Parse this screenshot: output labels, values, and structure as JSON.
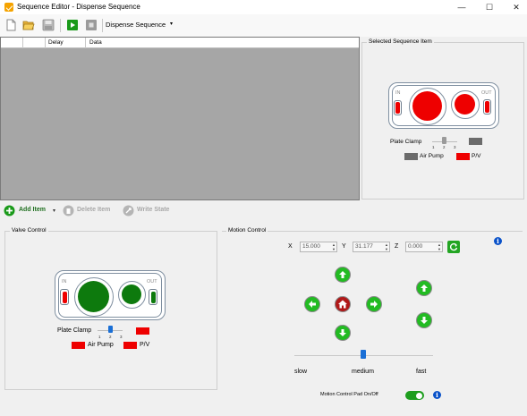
{
  "window": {
    "title": "Sequence Editor - Dispense Sequence",
    "minimize_glyph": "—",
    "maximize_glyph": "☐",
    "close_glyph": "✕"
  },
  "toolbar": {
    "new_icon": "new-file-icon",
    "open_icon": "open-folder-icon",
    "save_icon": "save-icon",
    "play_icon": "play-icon",
    "stop_icon": "stop-icon",
    "sequence_selected": "Dispense Sequence",
    "dropdown_caret": "▾"
  },
  "sequence_table": {
    "columns": [
      "",
      "",
      "Delay",
      "Data"
    ]
  },
  "selected_item": {
    "title": "Selected Sequence Item",
    "in_label": "IN",
    "out_label": "OUT",
    "plate_clamp_label": "Plate Clamp",
    "slider_ticks": [
      "1",
      "2",
      "3"
    ],
    "air_pump_label": "Air Pump",
    "pv_label": "P/V",
    "plate_clamp_color": "#6b6b6b",
    "air_pump_color": "#6b6b6b",
    "pv_color": "#ee0000",
    "valve_color": "#ee0000"
  },
  "bottom_toolbar": {
    "add_item": "Add Item",
    "add_caret": "▾",
    "delete_item": "Delete Item",
    "write_state": "Write State"
  },
  "valve_control": {
    "title": "Valve Control",
    "in_label": "IN",
    "out_label": "OUT",
    "plate_clamp_label": "Plate Clamp",
    "slider_ticks": [
      "1",
      "2",
      "3"
    ],
    "air_pump_label": "Air Pump",
    "pv_label": "P/V",
    "plate_clamp_color": "#ee0000",
    "air_pump_color": "#ee0000",
    "pv_color": "#ee0000",
    "valve_color": "#0d7a0d"
  },
  "motion_control": {
    "title": "Motion Control",
    "x_label": "X",
    "x_value": "15.000",
    "y_label": "Y",
    "y_value": "31.177",
    "z_label": "Z",
    "z_value": "0.000",
    "speed_slow": "slow",
    "speed_medium": "medium",
    "speed_fast": "fast",
    "speed_selected": "medium",
    "pad_toggle_label": "Motion Control Pad On/Off",
    "pad_toggle_on": true,
    "info_glyph": "i",
    "spin_up": "▲",
    "spin_down": "▼"
  },
  "colors": {
    "accent_green": "#22bb22",
    "home_red": "#b01818",
    "info_blue": "#0a52c9"
  }
}
